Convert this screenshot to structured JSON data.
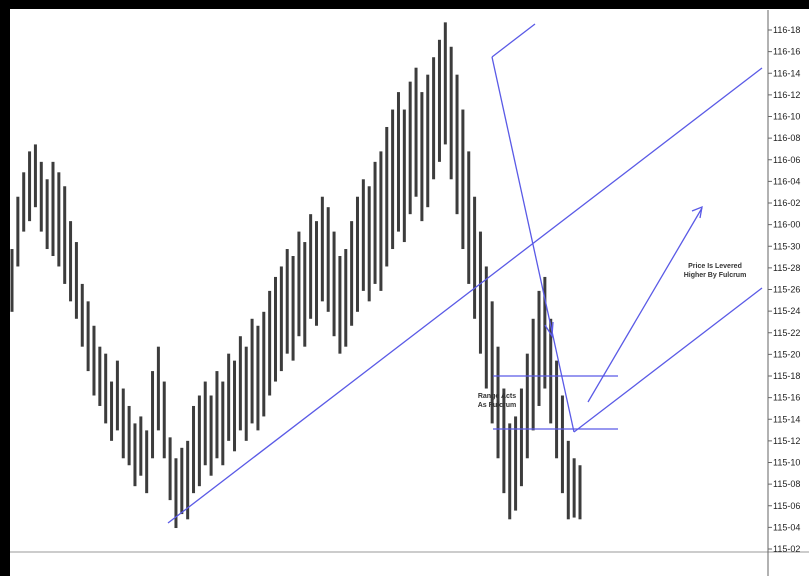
{
  "chart_data": {
    "type": "bar",
    "title": "",
    "xlabel": "",
    "ylabel": "",
    "y_ticks": [
      "116-18",
      "116-16",
      "116-14",
      "116-12",
      "116-10",
      "116-08",
      "116-06",
      "116-04",
      "116-02",
      "116-00",
      "115-30",
      "115-28",
      "115-26",
      "115-24",
      "115-22",
      "115-20",
      "115-18",
      "115-16",
      "115-14",
      "115-12",
      "115-10",
      "115-08",
      "115-06",
      "115-04",
      "115-02"
    ],
    "ylim": [
      115.03125,
      116.5625
    ],
    "price_bars": [
      [
        115.72,
        115.9
      ],
      [
        115.85,
        116.05
      ],
      [
        115.95,
        116.12
      ],
      [
        115.98,
        116.18
      ],
      [
        116.02,
        116.2
      ],
      [
        115.95,
        116.15
      ],
      [
        115.9,
        116.1
      ],
      [
        115.88,
        116.15
      ],
      [
        115.85,
        116.12
      ],
      [
        115.8,
        116.08
      ],
      [
        115.75,
        115.98
      ],
      [
        115.7,
        115.92
      ],
      [
        115.62,
        115.8
      ],
      [
        115.55,
        115.75
      ],
      [
        115.48,
        115.68
      ],
      [
        115.45,
        115.62
      ],
      [
        115.4,
        115.6
      ],
      [
        115.35,
        115.52
      ],
      [
        115.38,
        115.58
      ],
      [
        115.3,
        115.5
      ],
      [
        115.28,
        115.45
      ],
      [
        115.22,
        115.4
      ],
      [
        115.25,
        115.42
      ],
      [
        115.2,
        115.38
      ],
      [
        115.3,
        115.55
      ],
      [
        115.38,
        115.62
      ],
      [
        115.3,
        115.52
      ],
      [
        115.18,
        115.36
      ],
      [
        115.1,
        115.3
      ],
      [
        115.14,
        115.33
      ],
      [
        115.125,
        115.35
      ],
      [
        115.2,
        115.45
      ],
      [
        115.22,
        115.48
      ],
      [
        115.28,
        115.52
      ],
      [
        115.25,
        115.48
      ],
      [
        115.3,
        115.55
      ],
      [
        115.28,
        115.52
      ],
      [
        115.35,
        115.6
      ],
      [
        115.32,
        115.58
      ],
      [
        115.38,
        115.65
      ],
      [
        115.35,
        115.62
      ],
      [
        115.4,
        115.7
      ],
      [
        115.38,
        115.68
      ],
      [
        115.42,
        115.72
      ],
      [
        115.48,
        115.78
      ],
      [
        115.52,
        115.82
      ],
      [
        115.55,
        115.85
      ],
      [
        115.6,
        115.9
      ],
      [
        115.58,
        115.88
      ],
      [
        115.65,
        115.95
      ],
      [
        115.62,
        115.92
      ],
      [
        115.7,
        116.0
      ],
      [
        115.68,
        115.98
      ],
      [
        115.75,
        116.05
      ],
      [
        115.72,
        116.02
      ],
      [
        115.65,
        115.95
      ],
      [
        115.6,
        115.88
      ],
      [
        115.62,
        115.9
      ],
      [
        115.68,
        115.98
      ],
      [
        115.72,
        116.05
      ],
      [
        115.78,
        116.1
      ],
      [
        115.75,
        116.08
      ],
      [
        115.8,
        116.15
      ],
      [
        115.78,
        116.18
      ],
      [
        115.85,
        116.25
      ],
      [
        115.9,
        116.3
      ],
      [
        115.95,
        116.35
      ],
      [
        115.92,
        116.3
      ],
      [
        116.0,
        116.38
      ],
      [
        116.05,
        116.42
      ],
      [
        115.98,
        116.35
      ],
      [
        116.02,
        116.4
      ],
      [
        116.1,
        116.45
      ],
      [
        116.15,
        116.5
      ],
      [
        116.2,
        116.55
      ],
      [
        116.1,
        116.48
      ],
      [
        116.0,
        116.4
      ],
      [
        115.9,
        116.3
      ],
      [
        115.8,
        116.18
      ],
      [
        115.7,
        116.05
      ],
      [
        115.6,
        115.95
      ],
      [
        115.5,
        115.85
      ],
      [
        115.4,
        115.75
      ],
      [
        115.3,
        115.62
      ],
      [
        115.2,
        115.5
      ],
      [
        115.125,
        115.4
      ],
      [
        115.15,
        115.42
      ],
      [
        115.22,
        115.5
      ],
      [
        115.3,
        115.6
      ],
      [
        115.38,
        115.7
      ],
      [
        115.45,
        115.78
      ],
      [
        115.5,
        115.82
      ],
      [
        115.4,
        115.7
      ],
      [
        115.3,
        115.58
      ],
      [
        115.2,
        115.48
      ],
      [
        115.125,
        115.35
      ],
      [
        115.13,
        115.3
      ],
      [
        115.125,
        115.28
      ]
    ],
    "annotations": [
      {
        "lines": [
          "Range Acts",
          "As Fulcrum"
        ]
      },
      {
        "lines": [
          "Price Is Levered",
          "Higher By Fulcrum"
        ]
      }
    ],
    "line_color": "#5a5ae6",
    "bar_color": "#3c3c3c"
  }
}
